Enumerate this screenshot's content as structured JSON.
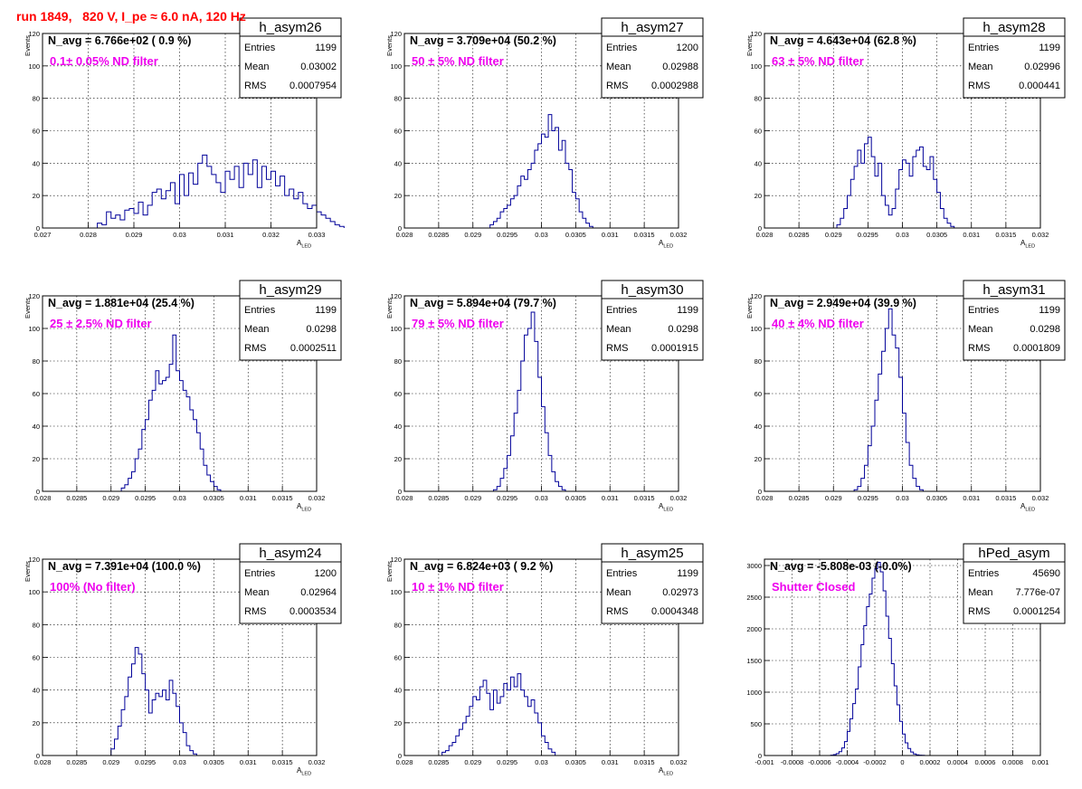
{
  "run_title": "run 1849,   820 V, I_pe ≈ 6.0 nA, 120 Hz",
  "colors": {
    "hist_line": "#000099",
    "filter_text": "#ee00ee",
    "run_title": "#ff0000",
    "grid": "#000000"
  },
  "stats_labels": {
    "entries": "Entries",
    "mean": "Mean",
    "rms": "RMS"
  },
  "chart_data": [
    {
      "type": "bar",
      "hist": "h_asym26",
      "navg": "N_avg = 6.766e+02 ( 0.9 %)",
      "filter": "0.1± 0.05% ND filter",
      "stats": {
        "entries": "1199",
        "mean": "0.03002",
        "rms": "0.0007954"
      },
      "ylabel": "Events",
      "xlabel": "A",
      "xlabel_sub": "LED",
      "xlim": [
        0.027,
        0.033
      ],
      "ylim": [
        0,
        120
      ],
      "xticks": [
        0.027,
        0.028,
        0.029,
        0.03,
        0.031,
        0.032,
        0.033
      ],
      "xticklabels": [
        "0.027",
        "0.028",
        "0.029",
        "0.03",
        "0.031",
        "0.032",
        "0.033"
      ],
      "yticks": [
        0,
        20,
        40,
        60,
        80,
        100,
        120
      ],
      "yticklabels": [
        "0",
        "20",
        "40",
        "60",
        "80",
        "100",
        "120"
      ],
      "grid": true,
      "x_min": 0.0282,
      "bin_width": 0.0001,
      "values": [
        3,
        2,
        10,
        6,
        8,
        5,
        11,
        12,
        9,
        16,
        8,
        14,
        22,
        24,
        18,
        23,
        28,
        15,
        33,
        20,
        34,
        27,
        40,
        45,
        38,
        33,
        28,
        22,
        35,
        30,
        38,
        25,
        40,
        33,
        42,
        25,
        38,
        30,
        35,
        26,
        32,
        20,
        24,
        18,
        22,
        15,
        12,
        14,
        10,
        8,
        6,
        4,
        2,
        1
      ]
    },
    {
      "type": "bar",
      "hist": "h_asym27",
      "navg": "N_avg = 3.709e+04 (50.2 %)",
      "filter": "50 ± 5% ND filter",
      "stats": {
        "entries": "1200",
        "mean": "0.02988",
        "rms": "0.0002988"
      },
      "ylabel": "Events",
      "xlabel": "A",
      "xlabel_sub": "LED",
      "xlim": [
        0.028,
        0.032
      ],
      "ylim": [
        0,
        120
      ],
      "xticks": [
        0.028,
        0.0285,
        0.029,
        0.0295,
        0.03,
        0.0305,
        0.031,
        0.0315,
        0.032
      ],
      "xticklabels": [
        "0.028",
        "0.0285",
        "0.029",
        "0.0295",
        "0.03",
        "0.0305",
        "0.031",
        "0.0315",
        "0.032"
      ],
      "yticks": [
        0,
        20,
        40,
        60,
        80,
        100,
        120
      ],
      "yticklabels": [
        "0",
        "20",
        "40",
        "60",
        "80",
        "100",
        "120"
      ],
      "grid": true,
      "x_min": 0.02925,
      "bin_width": 5e-05,
      "values": [
        2,
        4,
        6,
        10,
        12,
        14,
        18,
        20,
        26,
        32,
        30,
        36,
        40,
        48,
        52,
        58,
        56,
        70,
        60,
        62,
        48,
        54,
        40,
        36,
        22,
        18,
        10,
        6,
        3,
        1
      ]
    },
    {
      "type": "bar",
      "hist": "h_asym28",
      "navg": "N_avg = 4.643e+04 (62.8 %)",
      "filter": "63 ± 5% ND filter",
      "stats": {
        "entries": "1199",
        "mean": "0.02996",
        "rms": "0.000441"
      },
      "ylabel": "Events",
      "xlabel": "A",
      "xlabel_sub": "LED",
      "xlim": [
        0.028,
        0.032
      ],
      "ylim": [
        0,
        120
      ],
      "xticks": [
        0.028,
        0.0285,
        0.029,
        0.0295,
        0.03,
        0.0305,
        0.031,
        0.0315,
        0.032
      ],
      "xticklabels": [
        "0.028",
        "0.0285",
        "0.029",
        "0.0295",
        "0.03",
        "0.0305",
        "0.031",
        "0.0315",
        "0.032"
      ],
      "yticks": [
        0,
        20,
        40,
        60,
        80,
        100,
        120
      ],
      "yticklabels": [
        "0",
        "20",
        "40",
        "60",
        "80",
        "100",
        "120"
      ],
      "grid": true,
      "x_min": 0.02905,
      "bin_width": 5e-05,
      "values": [
        2,
        6,
        12,
        20,
        30,
        38,
        48,
        40,
        52,
        56,
        44,
        32,
        40,
        20,
        14,
        8,
        12,
        24,
        36,
        42,
        40,
        32,
        44,
        48,
        50,
        38,
        36,
        44,
        30,
        22,
        12,
        6,
        3,
        1
      ]
    },
    {
      "type": "bar",
      "hist": "h_asym29",
      "navg": "N_avg = 1.881e+04 (25.4 %)",
      "filter": "25 ± 2.5% ND filter",
      "stats": {
        "entries": "1199",
        "mean": "0.0298",
        "rms": "0.0002511"
      },
      "ylabel": "Events",
      "xlabel": "A",
      "xlabel_sub": "LED",
      "xlim": [
        0.028,
        0.032
      ],
      "ylim": [
        0,
        120
      ],
      "xticks": [
        0.028,
        0.0285,
        0.029,
        0.0295,
        0.03,
        0.0305,
        0.031,
        0.0315,
        0.032
      ],
      "xticklabels": [
        "0.028",
        "0.0285",
        "0.029",
        "0.0295",
        "0.03",
        "0.0305",
        "0.031",
        "0.0315",
        "0.032"
      ],
      "yticks": [
        0,
        20,
        40,
        60,
        80,
        100,
        120
      ],
      "yticklabels": [
        "0",
        "20",
        "40",
        "60",
        "80",
        "100",
        "120"
      ],
      "grid": true,
      "x_min": 0.02915,
      "bin_width": 5e-05,
      "values": [
        2,
        4,
        8,
        12,
        20,
        26,
        38,
        44,
        56,
        62,
        74,
        66,
        68,
        70,
        78,
        96,
        74,
        68,
        62,
        58,
        50,
        44,
        36,
        26,
        16,
        10,
        6,
        3,
        1
      ]
    },
    {
      "type": "bar",
      "hist": "h_asym30",
      "navg": "N_avg = 5.894e+04 (79.7 %)",
      "filter": "79 ± 5% ND filter",
      "stats": {
        "entries": "1199",
        "mean": "0.0298",
        "rms": "0.0001915"
      },
      "ylabel": "Events",
      "xlabel": "A",
      "xlabel_sub": "LED",
      "xlim": [
        0.028,
        0.032
      ],
      "ylim": [
        0,
        120
      ],
      "xticks": [
        0.028,
        0.0285,
        0.029,
        0.0295,
        0.03,
        0.0305,
        0.031,
        0.0315,
        0.032
      ],
      "xticklabels": [
        "0.028",
        "0.0285",
        "0.029",
        "0.0295",
        "0.03",
        "0.0305",
        "0.031",
        "0.0315",
        "0.032"
      ],
      "yticks": [
        0,
        20,
        40,
        60,
        80,
        100,
        120
      ],
      "yticklabels": [
        "0",
        "20",
        "40",
        "60",
        "80",
        "100",
        "120"
      ],
      "grid": true,
      "x_min": 0.0293,
      "bin_width": 5e-05,
      "values": [
        1,
        3,
        8,
        14,
        22,
        34,
        48,
        62,
        80,
        96,
        100,
        110,
        92,
        70,
        52,
        36,
        22,
        12,
        6,
        3,
        1
      ]
    },
    {
      "type": "bar",
      "hist": "h_asym31",
      "navg": "N_avg = 2.949e+04 (39.9 %)",
      "filter": "40 ± 4% ND filter",
      "stats": {
        "entries": "1199",
        "mean": "0.0298",
        "rms": "0.0001809"
      },
      "ylabel": "Events",
      "xlabel": "A",
      "xlabel_sub": "LED",
      "xlim": [
        0.028,
        0.032
      ],
      "ylim": [
        0,
        120
      ],
      "xticks": [
        0.028,
        0.0285,
        0.029,
        0.0295,
        0.03,
        0.0305,
        0.031,
        0.0315,
        0.032
      ],
      "xticklabels": [
        "0.028",
        "0.0285",
        "0.029",
        "0.0295",
        "0.03",
        "0.0305",
        "0.031",
        "0.0315",
        "0.032"
      ],
      "yticks": [
        0,
        20,
        40,
        60,
        80,
        100,
        120
      ],
      "yticklabels": [
        "0",
        "20",
        "40",
        "60",
        "80",
        "100",
        "120"
      ],
      "grid": true,
      "x_min": 0.0293,
      "bin_width": 5e-05,
      "values": [
        1,
        3,
        8,
        16,
        28,
        40,
        56,
        72,
        86,
        100,
        112,
        96,
        88,
        70,
        48,
        30,
        16,
        8,
        3,
        1
      ]
    },
    {
      "type": "bar",
      "hist": "h_asym24",
      "navg": "N_avg = 7.391e+04 (100.0 %)",
      "filter": "100% (No filter)",
      "stats": {
        "entries": "1200",
        "mean": "0.02964",
        "rms": "0.0003534"
      },
      "ylabel": "Events",
      "xlabel": "A",
      "xlabel_sub": "LED",
      "xlim": [
        0.028,
        0.032
      ],
      "ylim": [
        0,
        120
      ],
      "xticks": [
        0.028,
        0.0285,
        0.029,
        0.0295,
        0.03,
        0.0305,
        0.031,
        0.0315,
        0.032
      ],
      "xticklabels": [
        "0.028",
        "0.0285",
        "0.029",
        "0.0295",
        "0.03",
        "0.0305",
        "0.031",
        "0.0315",
        "0.032"
      ],
      "yticks": [
        0,
        20,
        40,
        60,
        80,
        100,
        120
      ],
      "yticklabels": [
        "0",
        "20",
        "40",
        "60",
        "80",
        "100",
        "120"
      ],
      "grid": true,
      "x_min": 0.029,
      "bin_width": 5e-05,
      "values": [
        4,
        10,
        18,
        28,
        36,
        48,
        56,
        66,
        62,
        50,
        40,
        26,
        34,
        38,
        36,
        40,
        34,
        46,
        38,
        30,
        20,
        14,
        6,
        3,
        1
      ]
    },
    {
      "type": "bar",
      "hist": "h_asym25",
      "navg": "N_avg = 6.824e+03 ( 9.2 %)",
      "filter": "10 ± 1% ND filter",
      "stats": {
        "entries": "1199",
        "mean": "0.02973",
        "rms": "0.0004348"
      },
      "ylabel": "Events",
      "xlabel": "A",
      "xlabel_sub": "LED",
      "xlim": [
        0.028,
        0.032
      ],
      "ylim": [
        0,
        120
      ],
      "xticks": [
        0.028,
        0.0285,
        0.029,
        0.0295,
        0.03,
        0.0305,
        0.031,
        0.0315,
        0.032
      ],
      "xticklabels": [
        "0.028",
        "0.0285",
        "0.029",
        "0.0295",
        "0.03",
        "0.0305",
        "0.031",
        "0.0315",
        "0.032"
      ],
      "yticks": [
        0,
        20,
        40,
        60,
        80,
        100,
        120
      ],
      "yticklabels": [
        "0",
        "20",
        "40",
        "60",
        "80",
        "100",
        "120"
      ],
      "grid": true,
      "x_min": 0.02855,
      "bin_width": 5e-05,
      "values": [
        2,
        3,
        6,
        8,
        12,
        16,
        20,
        24,
        30,
        36,
        34,
        42,
        46,
        38,
        28,
        40,
        32,
        36,
        44,
        40,
        48,
        42,
        50,
        40,
        36,
        30,
        34,
        26,
        20,
        12,
        8,
        4,
        2
      ]
    },
    {
      "type": "bar",
      "hist": "hPed_asym",
      "navg": "N_avg = -5.808e-03 (-0.0%)",
      "filter": "Shutter Closed",
      "stats": {
        "entries": "45690",
        "mean": "7.776e-07",
        "rms": "0.0001254"
      },
      "ylabel": "",
      "xlabel": "",
      "xlabel_sub": "",
      "xlim": [
        -0.001,
        0.001
      ],
      "ylim": [
        0,
        3100
      ],
      "xticks": [
        -0.001,
        -0.0008,
        -0.0006,
        -0.0004,
        -0.0002,
        0,
        0.0002,
        0.0004,
        0.0006,
        0.0008,
        0.001
      ],
      "xticklabels": [
        "-0.001",
        "-0.0008",
        "-0.0006",
        "-0.0004",
        "-0.0002",
        "0",
        "0.0002",
        "0.0004",
        "0.0006",
        "0.0008",
        "0.001"
      ],
      "yticks": [
        0,
        500,
        1000,
        1500,
        2000,
        2500,
        3000
      ],
      "yticklabels": [
        "0",
        "500",
        "1000",
        "1500",
        "2000",
        "2500",
        "3000"
      ],
      "grid": true,
      "x_min": -0.00052,
      "bin_width": 2e-05,
      "values": [
        5,
        15,
        30,
        60,
        120,
        220,
        380,
        580,
        820,
        1050,
        1400,
        1750,
        2050,
        2350,
        2550,
        2800,
        2950,
        3050,
        2900,
        2600,
        2200,
        1850,
        1450,
        1100,
        800,
        540,
        340,
        200,
        110,
        55,
        25,
        10,
        5,
        3
      ]
    }
  ]
}
